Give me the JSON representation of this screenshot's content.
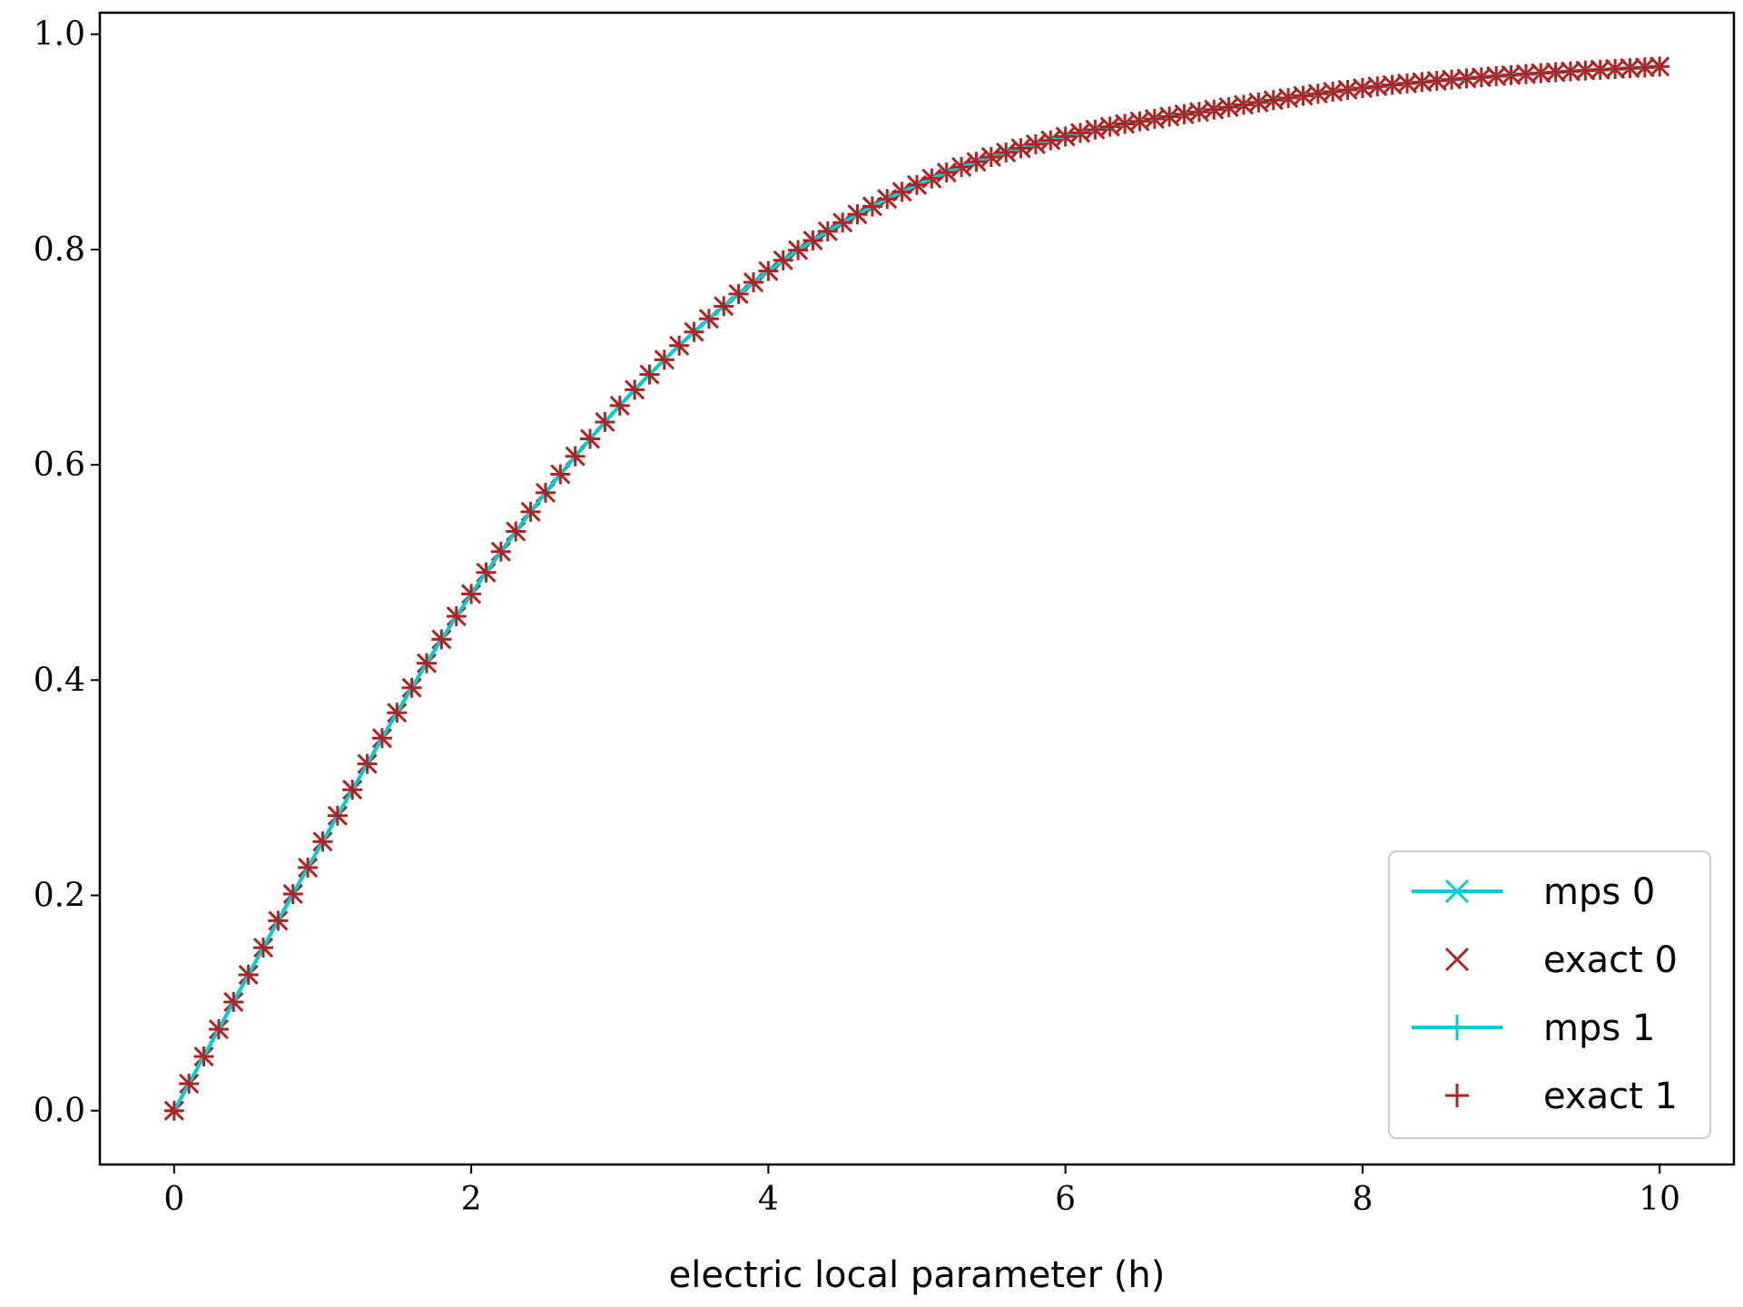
{
  "chart_data": {
    "type": "line",
    "title": "",
    "xlabel": "electric local parameter (h)",
    "ylabel": "",
    "xlim": [
      -0.5,
      10.5
    ],
    "ylim": [
      -0.05,
      1.02
    ],
    "xticks": [
      0,
      2,
      4,
      6,
      8,
      10
    ],
    "xtick_labels": [
      "0",
      "2",
      "4",
      "6",
      "8",
      "10"
    ],
    "yticks": [
      0.0,
      0.2,
      0.4,
      0.6,
      0.8,
      1.0
    ],
    "ytick_labels": [
      "0.0",
      "0.2",
      "0.4",
      "0.6",
      "0.8",
      "1.0"
    ],
    "grid": false,
    "legend_position": "lower-right",
    "x_range": {
      "start": 0,
      "stop": 10,
      "step": 0.1
    },
    "series": [
      {
        "name": "mps 0",
        "style": "line-x",
        "color": "#00CED1"
      },
      {
        "name": "exact 0",
        "style": "x-marker",
        "color": "#B22222"
      },
      {
        "name": "mps 1",
        "style": "line-plus",
        "color": "#00CED1"
      },
      {
        "name": "exact 1",
        "style": "plus-marker",
        "color": "#B22222"
      }
    ],
    "sample_values": [
      {
        "x": 0,
        "y": 0.0
      },
      {
        "x": 1,
        "y": 0.25
      },
      {
        "x": 2,
        "y": 0.48
      },
      {
        "x": 3,
        "y": 0.655
      },
      {
        "x": 4,
        "y": 0.78
      },
      {
        "x": 5,
        "y": 0.86
      },
      {
        "x": 6,
        "y": 0.905
      },
      {
        "x": 7,
        "y": 0.93
      },
      {
        "x": 8,
        "y": 0.95
      },
      {
        "x": 9,
        "y": 0.962
      },
      {
        "x": 10,
        "y": 0.97
      }
    ]
  }
}
